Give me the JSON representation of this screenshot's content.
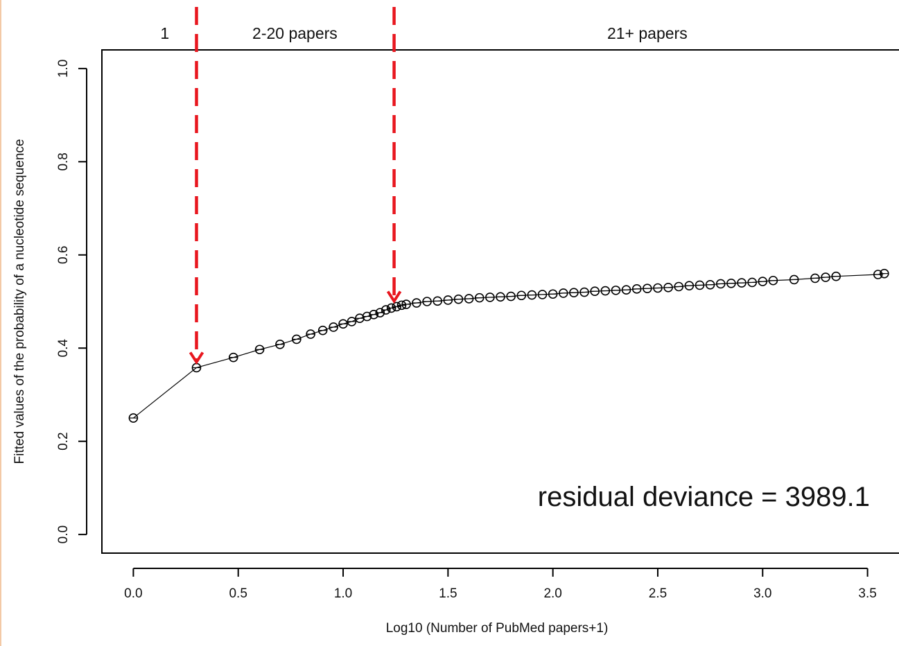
{
  "chart_data": {
    "type": "scatter",
    "title": "",
    "xlabel": "Log10 (Number of PubMed papers+1)",
    "ylabel": "Fitted values of the probability of a nucleotide sequence",
    "xlim": [
      -0.15,
      3.65
    ],
    "ylim": [
      -0.04,
      1.04
    ],
    "xticks": [
      "0.0",
      "0.5",
      "1.0",
      "1.5",
      "2.0",
      "2.5",
      "3.0",
      "3.5"
    ],
    "yticks": [
      "0.0",
      "0.2",
      "0.4",
      "0.6",
      "0.8",
      "1.0"
    ],
    "grid": false,
    "line_color": "#000000",
    "marker": "open-circle-crosshair",
    "series": [
      {
        "x": [
          0.0,
          0.301,
          0.477,
          0.602,
          0.699,
          0.778,
          0.845,
          0.903,
          0.954,
          1.0,
          1.041,
          1.079,
          1.114,
          1.146,
          1.176,
          1.204,
          1.23,
          1.255,
          1.279,
          1.301,
          1.35,
          1.4,
          1.45,
          1.5,
          1.55,
          1.6,
          1.65,
          1.7,
          1.75,
          1.8,
          1.85,
          1.9,
          1.95,
          2.0,
          2.05,
          2.1,
          2.15,
          2.2,
          2.25,
          2.3,
          2.35,
          2.4,
          2.45,
          2.5,
          2.55,
          2.6,
          2.65,
          2.7,
          2.75,
          2.8,
          2.85,
          2.9,
          2.95,
          3.0,
          3.05,
          3.15,
          3.25,
          3.3,
          3.35,
          3.55,
          3.58
        ],
        "y": [
          0.25,
          0.358,
          0.38,
          0.397,
          0.408,
          0.419,
          0.43,
          0.438,
          0.445,
          0.452,
          0.457,
          0.464,
          0.468,
          0.472,
          0.476,
          0.482,
          0.486,
          0.489,
          0.492,
          0.494,
          0.497,
          0.5,
          0.501,
          0.503,
          0.505,
          0.506,
          0.508,
          0.509,
          0.51,
          0.511,
          0.513,
          0.514,
          0.515,
          0.516,
          0.518,
          0.519,
          0.52,
          0.522,
          0.523,
          0.524,
          0.525,
          0.527,
          0.528,
          0.529,
          0.53,
          0.532,
          0.534,
          0.535,
          0.536,
          0.538,
          0.539,
          0.54,
          0.541,
          0.543,
          0.545,
          0.547,
          0.55,
          0.552,
          0.554,
          0.558,
          0.56
        ]
      }
    ],
    "cutoffs": [
      0.301,
      1.243
    ],
    "cutoff_color": "#e8161e",
    "regions": [
      {
        "label": "1",
        "x": 0.15
      },
      {
        "label": "2-20 papers",
        "x": 0.77
      },
      {
        "label": "21+ papers",
        "x": 2.45
      }
    ],
    "annotation": "residual deviance = 3989.1"
  }
}
